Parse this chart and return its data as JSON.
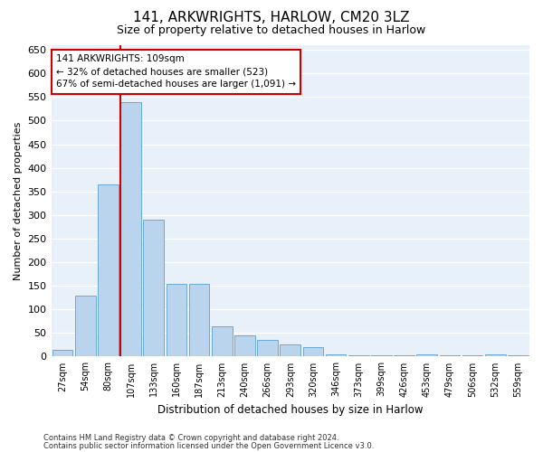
{
  "title": "141, ARKWRIGHTS, HARLOW, CM20 3LZ",
  "subtitle": "Size of property relative to detached houses in Harlow",
  "xlabel": "Distribution of detached houses by size in Harlow",
  "ylabel": "Number of detached properties",
  "bar_color": "#bad4ee",
  "bar_edge_color": "#6aaad4",
  "background_color": "#e8f0fa",
  "grid_color": "#ffffff",
  "annotation_box_color": "#cc0000",
  "property_line_color": "#cc0000",
  "categories": [
    "27sqm",
    "54sqm",
    "80sqm",
    "107sqm",
    "133sqm",
    "160sqm",
    "187sqm",
    "213sqm",
    "240sqm",
    "266sqm",
    "293sqm",
    "320sqm",
    "346sqm",
    "373sqm",
    "399sqm",
    "426sqm",
    "453sqm",
    "479sqm",
    "506sqm",
    "532sqm",
    "559sqm"
  ],
  "values": [
    15,
    130,
    365,
    540,
    290,
    155,
    155,
    65,
    45,
    35,
    25,
    20,
    5,
    2,
    2,
    2,
    5,
    2,
    2,
    5,
    2
  ],
  "property_label": "141 ARKWRIGHTS: 109sqm",
  "annotation_line1": "← 32% of detached houses are smaller (523)",
  "annotation_line2": "67% of semi-detached houses are larger (1,091) →",
  "property_bar_index": 3,
  "ylim": [
    0,
    660
  ],
  "yticks": [
    0,
    50,
    100,
    150,
    200,
    250,
    300,
    350,
    400,
    450,
    500,
    550,
    600,
    650
  ],
  "footnote1": "Contains HM Land Registry data © Crown copyright and database right 2024.",
  "footnote2": "Contains public sector information licensed under the Open Government Licence v3.0."
}
